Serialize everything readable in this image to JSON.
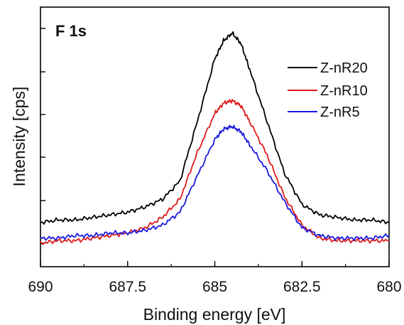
{
  "chart_data": {
    "type": "line",
    "title": "F 1s",
    "xlabel": "Binding energy [eV]",
    "ylabel": "Intensity [cps]",
    "xlim": [
      690,
      680
    ],
    "x_reversed": true,
    "ylim": [
      0,
      100
    ],
    "y_tick_labels_shown": false,
    "x_ticks": [
      690,
      687.5,
      685,
      682.5,
      680
    ],
    "x_tick_labels": [
      "690",
      "687.5",
      "685",
      "682.5",
      "680"
    ],
    "grid": false,
    "legend_position": "top-right",
    "series": [
      {
        "name": "Z-nR20",
        "color": "#000000",
        "x": [
          690,
          689.5,
          689,
          688.5,
          688,
          687.5,
          687,
          686.5,
          686,
          685.5,
          685,
          684.75,
          684.5,
          684.25,
          684,
          683.5,
          683,
          682.5,
          682,
          681.5,
          681,
          680.5,
          680
        ],
        "y": [
          17,
          18,
          18,
          19,
          20,
          21,
          23,
          26,
          33,
          56,
          80,
          87,
          90,
          86,
          76,
          56,
          36,
          24,
          20,
          19,
          18,
          18,
          17
        ]
      },
      {
        "name": "Z-nR10",
        "color": "#e01b1b",
        "x": [
          690,
          689.5,
          689,
          688.5,
          688,
          687.5,
          687,
          686.5,
          686,
          685.5,
          685,
          684.75,
          684.5,
          684.25,
          684,
          683.5,
          683,
          682.5,
          682,
          681.5,
          681,
          680.5,
          680
        ],
        "y": [
          9,
          10,
          10,
          11,
          12,
          13,
          15,
          19,
          26,
          44,
          59,
          63,
          64,
          62,
          56,
          43,
          27,
          16,
          11,
          10,
          10,
          10,
          10
        ]
      },
      {
        "name": "Z-nR5",
        "color": "#1a1ae0",
        "x": [
          690,
          689.5,
          689,
          688.5,
          688,
          687.5,
          687,
          686.5,
          686,
          685.5,
          685,
          684.75,
          684.5,
          684.25,
          684,
          683.5,
          683,
          682.5,
          682,
          681.5,
          681,
          680.5,
          680
        ],
        "y": [
          11,
          11,
          12,
          12,
          13,
          13,
          14,
          16,
          21,
          35,
          49,
          53,
          54,
          52,
          47,
          37,
          25,
          15,
          12,
          11,
          11,
          11,
          12
        ]
      }
    ]
  }
}
